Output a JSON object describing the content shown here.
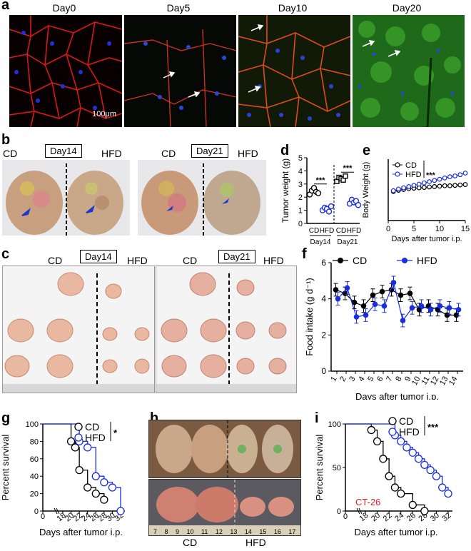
{
  "panel_letters": {
    "a": "a",
    "b": "b",
    "c": "c",
    "d": "d",
    "e": "e",
    "f": "f",
    "g": "g",
    "h": "h",
    "i": "i"
  },
  "panel_a": {
    "titles": [
      "Day0",
      "Day5",
      "Day10",
      "Day20"
    ],
    "scalebar": "100μm"
  },
  "panel_b": {
    "left": {
      "cd": "CD",
      "day": "Day14",
      "hfd": "HFD"
    },
    "right": {
      "cd": "CD",
      "day": "Day21",
      "hfd": "HFD"
    }
  },
  "panel_c": {
    "left": {
      "cd": "CD",
      "day": "Day14",
      "hfd": "HFD"
    },
    "right": {
      "cd": "CD",
      "day": "Day21",
      "hfd": "HFD"
    }
  },
  "panel_h": {
    "cd": "CD",
    "hfd": "HFD",
    "ruler_left": "7 8 9 10 11 12 13 14 15 16 17"
  },
  "chart_data": [
    {
      "panel": "d",
      "type": "scatter",
      "ylabel": "Tumor weight (g)",
      "ylim": [
        0,
        5
      ],
      "yticks": [
        "0",
        "1",
        "2",
        "3",
        "4",
        "5"
      ],
      "groups": [
        "CD",
        "HFD",
        "CD",
        "HFD"
      ],
      "group_days": [
        "Day14",
        "Day21"
      ],
      "significance": [
        "***",
        "***"
      ],
      "series": [
        {
          "name": "CD Day14",
          "values": [
            2.2,
            2.5,
            2.7,
            2.4,
            2.3
          ]
        },
        {
          "name": "HFD Day14",
          "values": [
            1.0,
            1.2,
            1.1,
            0.9,
            1.3
          ]
        },
        {
          "name": "CD Day21",
          "values": [
            3.2,
            3.5,
            3.4,
            3.3,
            3.6
          ]
        },
        {
          "name": "HFD Day21",
          "values": [
            1.5,
            1.8,
            1.6,
            1.7,
            1.4
          ]
        }
      ]
    },
    {
      "panel": "e",
      "type": "line",
      "ylabel": "Body Weight (g)",
      "xlabel": "Days after tumor i.p.",
      "xlim": [
        0,
        15
      ],
      "ylim": [
        15,
        30
      ],
      "xticks": [
        "0",
        "5",
        "10",
        "15"
      ],
      "significance": "***",
      "x": [
        1,
        2,
        3,
        4,
        5,
        6,
        7,
        8,
        9,
        10,
        11,
        12,
        13,
        14,
        15
      ],
      "series": [
        {
          "name": "CD",
          "values": [
            22.1,
            22.4,
            22.6,
            22.8,
            22.9,
            23.0,
            23.1,
            23.2,
            23.3,
            23.4,
            23.5,
            23.5,
            23.6,
            23.7,
            23.8
          ]
        },
        {
          "name": "HFD",
          "values": [
            22.3,
            22.7,
            23.0,
            23.3,
            23.6,
            23.9,
            24.2,
            24.5,
            24.8,
            25.1,
            25.4,
            25.7,
            25.9,
            26.2,
            26.6
          ]
        }
      ]
    },
    {
      "panel": "f",
      "type": "line",
      "ylabel": "Food intake (g d⁻¹)",
      "xlabel": "Days after tumor i.p.",
      "ylim": [
        0,
        6
      ],
      "yticks": [
        "0",
        "2",
        "4",
        "6"
      ],
      "categories": [
        "1",
        "2",
        "3",
        "4",
        "5",
        "6",
        "7",
        "8",
        "9",
        "10",
        "11",
        "12",
        "13",
        "14"
      ],
      "series": [
        {
          "name": "CD",
          "values": [
            4.5,
            4.3,
            3.8,
            3.6,
            4.2,
            4.4,
            4.5,
            4.2,
            4.3,
            3.4,
            3.6,
            3.4,
            3.1,
            3.1
          ]
        },
        {
          "name": "HFD",
          "values": [
            4.0,
            4.6,
            3.0,
            3.1,
            3.7,
            3.6,
            4.9,
            2.8,
            3.5,
            3.6,
            3.4,
            3.6,
            3.5,
            3.4
          ]
        }
      ]
    },
    {
      "panel": "g",
      "type": "line",
      "ylabel": "Percent survival",
      "xlabel": "Days after tumor i.p.",
      "ylim": [
        0,
        100
      ],
      "yticks": [
        "0",
        "20",
        "40",
        "60",
        "80",
        "100"
      ],
      "xticks": [
        "0",
        "18",
        "20",
        "22",
        "24",
        "26",
        "28",
        "30",
        "32"
      ],
      "significance": "*",
      "series": [
        {
          "name": "CD",
          "x": [
            18,
            20,
            21,
            22,
            24,
            26,
            28
          ],
          "values": [
            100,
            80,
            73,
            47,
            27,
            20,
            13
          ]
        },
        {
          "name": "HFD",
          "x": [
            18,
            22,
            24,
            26,
            28,
            30,
            32
          ],
          "values": [
            100,
            80,
            73,
            40,
            33,
            27,
            0
          ]
        }
      ]
    },
    {
      "panel": "i",
      "type": "line",
      "ylabel": "Percent survival",
      "xlabel": "Days after tumor i.p.",
      "annotation": "CT-26",
      "ylim": [
        0,
        100
      ],
      "yticks": [
        "0",
        "50",
        "100"
      ],
      "xticks": [
        "0",
        "18",
        "20",
        "22",
        "24",
        "26",
        "28",
        "30",
        "32"
      ],
      "significance": "***",
      "series": [
        {
          "name": "CD",
          "x": [
            19,
            20,
            21,
            22,
            23,
            24,
            26,
            28
          ],
          "values": [
            93,
            80,
            60,
            40,
            27,
            20,
            7,
            0
          ]
        },
        {
          "name": "HFD",
          "x": [
            23,
            24,
            25,
            26,
            27,
            28,
            29,
            30,
            31,
            32
          ],
          "values": [
            87,
            80,
            73,
            67,
            60,
            53,
            47,
            40,
            27,
            20
          ]
        }
      ]
    }
  ]
}
